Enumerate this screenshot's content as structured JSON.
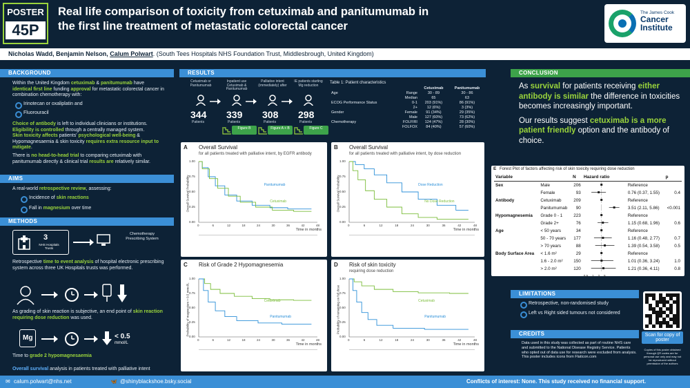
{
  "header": {
    "poster_label": "POSTER",
    "poster_number": "45P",
    "title": "Real life comparison of toxicity from cetuximab and panitumumab in the first line treatment of metastatic colorectal cancer",
    "logo_small": "The James Cook",
    "logo_line1": "Cancer",
    "logo_line2": "Institute"
  },
  "authors": {
    "names": "Nicholas Wadd, Benjamin Nelson, ",
    "presenter": "Calum Polwart",
    "affiliation": ". (South Tees Hospitals NHS Foundation Trust, Middlesbrough, United Kingdom)"
  },
  "background": {
    "heading": "BACKGROUND",
    "p1a": "Within the United Kingdom ",
    "p1_cetux": "cetuximab",
    "p1b": " & ",
    "p1_panit": "panitumumab",
    "p1c": " have ",
    "p1_ident": "identical first line",
    "p1d": " funding ",
    "p1_appr": "approval",
    "p1e": " for metastatic colorectal cancer in combination chemotherapy with:",
    "bullet1": "Irinotecan or oxaliplatin and",
    "bullet2": "Fluorouracil",
    "p2_choice": "Choice of antibody",
    "p2a": " is left to individual clinicians or institutions.",
    "p2_elig": "Eligibility is controlled",
    "p2b": " through a centrally managed system.",
    "p2_skin": "Skin toxicity affects",
    "p2c": " patients' ",
    "p2_psy": "psychological well-being",
    "p2d": " & Hypomagnesaemia & skin toxicity ",
    "p2_req": "requires extra resource input to mitigate",
    "p2e": ".",
    "p3a": "There is ",
    "p3_trial": "no head-to-head trial",
    "p3b": " to comparing cetuximab with panitumumab directly & clinical trial ",
    "p3_res": "results are",
    "p3c": " relatively similar."
  },
  "aims": {
    "heading": "AIMS",
    "intro_a": "A real-world ",
    "intro_b": "retrospective review",
    "intro_c": ", assessing:",
    "bullet1a": "Incidence of ",
    "bullet1b": "skin reactions",
    "bullet2a": "Fall in ",
    "bullet2b": "magnesium",
    "bullet2c": " over time"
  },
  "methods": {
    "heading": "METHODS",
    "hospitals_n": "3",
    "hospitals_label": "NHS Hospitals Trusts",
    "epcs": "Chemotherapy Prescribing System",
    "p1a": "Retrospective ",
    "p1b": "time to event analysis",
    "p1c": " of hospital electronic prescribing system across three UK Hospitals trusts was performed.",
    "p2a": "As grading of skin reaction is subjective, an end point of ",
    "p2b": "skin reaction requiring dose reduction",
    "p2c": " was used.",
    "mg_symbol": "Mg",
    "mg_threshold": "< 0.5",
    "mg_unit": "mmol/L",
    "p3a": "Time to ",
    "p3b": "grade 2 hypomagnesaemia",
    "p4a": "Overall survival",
    "p4b": " analysis in patients treated with palliative intent"
  },
  "results": {
    "heading": "RESULTS",
    "flow": [
      {
        "label": "Cetuximab or Panitumumab",
        "n": "344",
        "sub": "Patients"
      },
      {
        "label": "Inpatient use Cetuximab & Panitumumab",
        "n": "339",
        "sub": "Patients"
      },
      {
        "label": "Palliative intent (immediately) after",
        "n": "308",
        "sub": "Patients"
      },
      {
        "label": "IE patients starting Mg reduction",
        "n": "298",
        "sub": "Patients"
      }
    ],
    "fig_buttons": [
      "Figure B",
      "Figure A + B",
      "Figure C"
    ],
    "table_title": "Table 1: Patient characteristics",
    "table_cols": [
      "",
      "",
      "Cetuximab",
      "Panitumumab"
    ],
    "table_rows": [
      [
        "Age",
        "Range",
        "30 - 89",
        "30 - 86"
      ],
      [
        "",
        "Median",
        "65",
        "63"
      ],
      [
        "ECOG Performance Status",
        "0-1",
        "203 (91%)",
        "86 (91%)"
      ],
      [
        "",
        "2+",
        "12 (6%)",
        "3 (3%)"
      ],
      [
        "Gender",
        "Female",
        "91 (34%)",
        "29 (35%)"
      ],
      [
        "",
        "Male",
        "127 (60%)",
        "73 (62%)"
      ],
      [
        "Chemotherapy",
        "FOLFIRI",
        "124 (47%)",
        "28 (30%)"
      ],
      [
        "",
        "FOLFOX",
        "84 (40%)",
        "57 (60%)"
      ]
    ]
  },
  "figures": {
    "A": {
      "letter": "A",
      "title": "Overall Survival",
      "subtitle": "for all patients treated with palliative intent, by EGFR antibody",
      "s1": "Panitumumab",
      "s2": "Cetuximab",
      "ylabel": "Overall Survival Probability",
      "xlabel": "Time in months"
    },
    "B": {
      "letter": "B",
      "title": "Overall Survival",
      "subtitle": "for all patients treated with palliative intent, by dose reduction",
      "s1": "Dose Reduction",
      "s2": "No Dose Reduction",
      "ylabel": "Overall Survival Probability",
      "xlabel": "Time in months"
    },
    "C": {
      "letter": "C",
      "title": "Risk of Grade 2 Hypomagnesemia",
      "subtitle": "",
      "s1": "Cetuximab",
      "s2": "Panitumumab",
      "ylabel": "Probability of magnesium > 0.5 mmol/L",
      "xlabel": "Time in months"
    },
    "D": {
      "letter": "D",
      "title": "Risk of skin toxicity",
      "subtitle": "requiring dose reduction",
      "s1": "Cetuximab",
      "s2": "Panitumumab",
      "ylabel": "Probability of remaining on full dose",
      "xlabel": "Time in months"
    },
    "xticks": [
      "0",
      "6",
      "12",
      "18",
      "24",
      "30",
      "36",
      "42",
      "48"
    ],
    "yticks": [
      "1.00",
      "0.75",
      "0.50",
      "0.25",
      "0.00"
    ]
  },
  "conclusion": {
    "heading": "CONCLUSION",
    "p1a": "As ",
    "p1b": "survival",
    "p1c": " for patients receiving ",
    "p1d": "either antibody is similar",
    "p1e": " the difference in toxicities becomes increasingly important.",
    "p2a": "Our results suggest ",
    "p2b": "cetuximab is a more patient friendly",
    "p2c": " option and the antibody of choice."
  },
  "forest": {
    "letter": "E",
    "title": "Forest Plot of factors affecting risk of skin toxicity requiring dose reduction",
    "headers": [
      "Variable",
      "",
      "N",
      "Hazard ratio",
      "",
      "p"
    ],
    "rows": [
      [
        "Sex",
        "Male",
        "206",
        "Reference",
        ""
      ],
      [
        "",
        "Female",
        "93",
        "0.76 (0.37, 1.55)",
        "0.4"
      ],
      [
        "Antibody",
        "Cetuximab",
        "209",
        "Reference",
        ""
      ],
      [
        "",
        "Panitumumab",
        "90",
        "3.51 (2.11, 5.86)",
        "<0.001"
      ],
      [
        "Hypomagnesemia",
        "Grade 0 - 1",
        "223",
        "Reference",
        ""
      ],
      [
        "",
        "Grade 2+",
        "76",
        "1.15 (0.68, 1.96)",
        "0.6"
      ],
      [
        "Age",
        "< 50 years",
        "34",
        "Reference",
        ""
      ],
      [
        "",
        "50 - 70 years",
        "177",
        "1.16 (0.48, 2.77)",
        "0.7"
      ],
      [
        "",
        "> 70 years",
        "88",
        "1.39 (0.54, 3.58)",
        "0.5"
      ],
      [
        "Body Surface Area",
        "< 1.6 m²",
        "29",
        "Reference",
        ""
      ],
      [
        "",
        "1.6 - 2.0 m²",
        "150",
        "1.01 (0.36, 3.24)",
        "1.0"
      ],
      [
        "",
        "> 2.0 m²",
        "120",
        "1.21 (0.36, 4.11)",
        "0.8"
      ]
    ],
    "axis": [
      "0.5",
      "1",
      "2",
      "5"
    ]
  },
  "limitations": {
    "heading": "LIMITATIONS",
    "bullet1": "Retrospective, non-randomised study",
    "bullet2": "Left vs Right sided tumours not considered"
  },
  "credits": {
    "heading": "CREDITS",
    "text1": "Data used in this study was collected as part of routine NHS care and submitted to the National Disease Registry Service. Patients who opted out of data use for research were excluded from analysis.",
    "text2": "This poster includes icons from Flaticon.com"
  },
  "qr": {
    "caption": "Scan for copy of poster",
    "note": "Copies of this poster obtained through QR codes are for personal use only and may not be reproduced without permission of the authors"
  },
  "footer": {
    "email": "calum.polwart@nhs.net",
    "social": "@shinyblackshoe.bsky.social",
    "conflicts": "Conflicts of interest: None. This study received no financial support."
  }
}
